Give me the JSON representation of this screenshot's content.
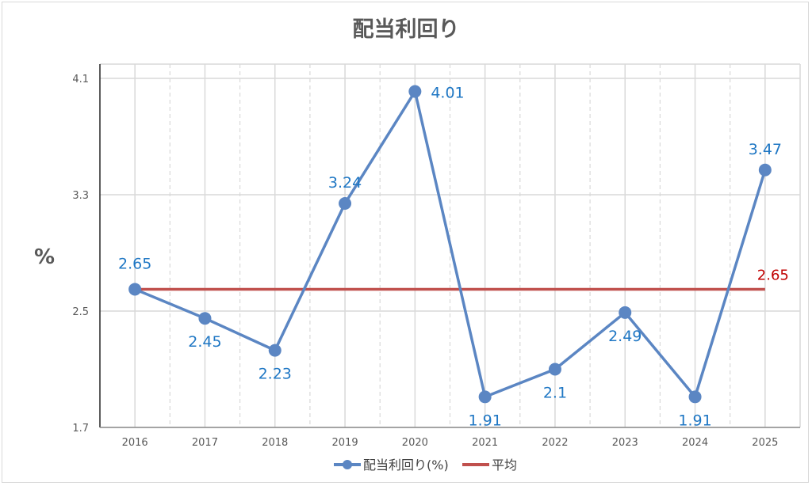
{
  "chart_data": {
    "type": "line",
    "title": "配当利回り",
    "ylabel": "%",
    "xlabel": "",
    "categories": [
      "2016",
      "2017",
      "2018",
      "2019",
      "2020",
      "2021",
      "2022",
      "2023",
      "2024",
      "2025"
    ],
    "series": [
      {
        "name": "配当利回り(%)",
        "values": [
          2.65,
          2.45,
          2.23,
          3.24,
          4.01,
          1.91,
          2.1,
          2.49,
          1.91,
          3.47
        ],
        "color": "#5b86c3",
        "labels": [
          "2.65",
          "2.45",
          "2.23",
          "3.24",
          "4.01",
          "1.91",
          "2.1",
          "2.49",
          "1.91",
          "3.47"
        ]
      },
      {
        "name": "平均",
        "values": [
          2.65,
          2.65,
          2.65,
          2.65,
          2.65,
          2.65,
          2.65,
          2.65,
          2.65,
          2.65
        ],
        "color": "#c0504d",
        "end_label": "2.65"
      }
    ],
    "ylim": [
      1.7,
      4.1
    ],
    "yticks": [
      "1.7",
      "2.5",
      "3.3",
      "4.1"
    ],
    "grid": true,
    "legend_position": "bottom",
    "data_label_color": "#1f77c4",
    "average_label_color": "#c00000"
  }
}
